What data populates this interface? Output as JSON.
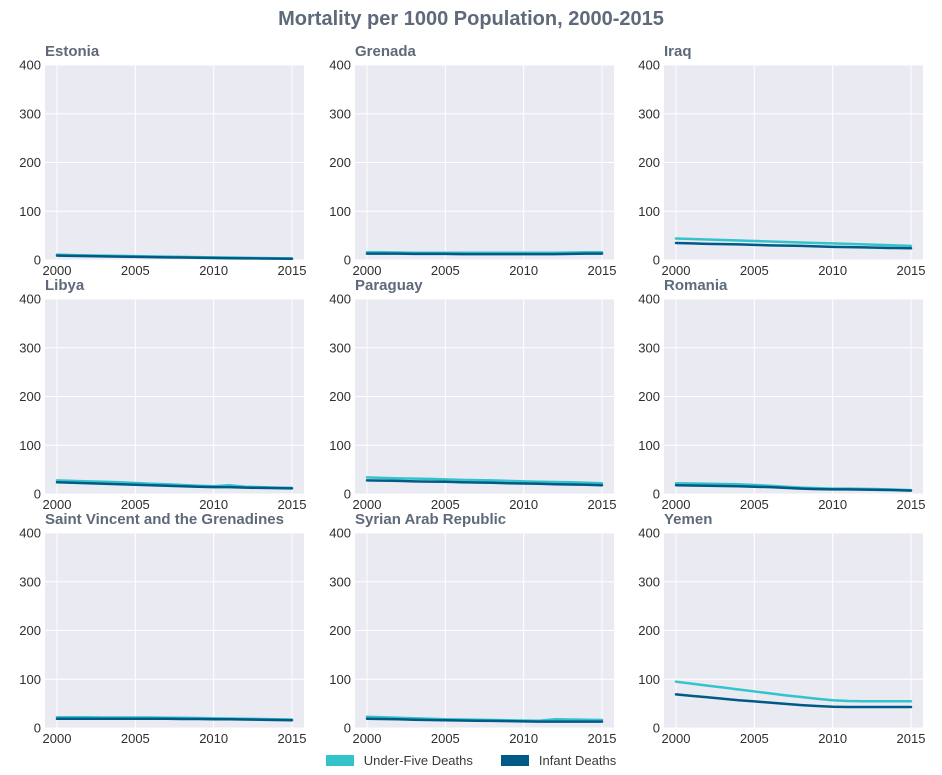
{
  "chart_data": {
    "type": "line",
    "title": "Mortality per 1000 Population, 2000-2015",
    "ylim": [
      0,
      400
    ],
    "xlim": [
      2000,
      2015
    ],
    "x_ticks": [
      2000,
      2005,
      2010,
      2015
    ],
    "y_ticks": [
      0,
      100,
      200,
      300,
      400
    ],
    "grid": true,
    "legend_position": "bottom-center",
    "series_colors": {
      "Under-Five Deaths": "#35c3cb",
      "Infant Deaths": "#005a87"
    },
    "legend": [
      {
        "name": "Under-Five Deaths",
        "color": "#35c3cb"
      },
      {
        "name": "Infant Deaths",
        "color": "#005a87"
      }
    ],
    "x": [
      2000,
      2001,
      2002,
      2003,
      2004,
      2005,
      2006,
      2007,
      2008,
      2009,
      2010,
      2011,
      2012,
      2013,
      2014,
      2015
    ],
    "panels": [
      {
        "title": "Estonia",
        "series": [
          {
            "name": "Under-Five Deaths",
            "values": [
              11,
              10,
              9.5,
              9,
              8.5,
              8,
              7.5,
              7,
              6.5,
              6,
              5.5,
              5,
              4.5,
              4,
              3.7,
              3.4
            ]
          },
          {
            "name": "Infant Deaths",
            "values": [
              9,
              8.5,
              8,
              7.5,
              7,
              6.5,
              6,
              5.5,
              5,
              4.5,
              4,
              3.7,
              3.4,
              3.1,
              2.8,
              2.5
            ]
          }
        ]
      },
      {
        "title": "Grenada",
        "series": [
          {
            "name": "Under-Five Deaths",
            "values": [
              16,
              16,
              15.5,
              15,
              15,
              15,
              15,
              15,
              15,
              15,
              15,
              15,
              15,
              15.5,
              16,
              16
            ]
          },
          {
            "name": "Infant Deaths",
            "values": [
              13,
              13,
              13,
              12.5,
              12.5,
              12.5,
              12,
              12,
              12,
              12,
              12,
              12,
              12,
              12.5,
              13,
              13
            ]
          }
        ]
      },
      {
        "title": "Iraq",
        "series": [
          {
            "name": "Under-Five Deaths",
            "values": [
              44,
              43,
              42,
              41,
              40,
              39,
              38,
              37,
              36,
              35,
              34,
              33,
              32,
              31,
              30,
              29
            ]
          },
          {
            "name": "Infant Deaths",
            "values": [
              35,
              34,
              33,
              32.5,
              32,
              31,
              30,
              29.5,
              29,
              28,
              27,
              26.5,
              26,
              25,
              24.5,
              24
            ]
          }
        ]
      },
      {
        "title": "Libya",
        "series": [
          {
            "name": "Under-Five Deaths",
            "values": [
              28,
              27,
              26,
              25,
              24,
              22.5,
              21,
              20,
              18.5,
              17,
              16,
              18,
              15,
              14,
              13,
              12.5
            ]
          },
          {
            "name": "Infant Deaths",
            "values": [
              24,
              23,
              22,
              21,
              20,
              19,
              18,
              17,
              16,
              15,
              14,
              14,
              13,
              12.5,
              12,
              11.5
            ]
          }
        ]
      },
      {
        "title": "Paraguay",
        "series": [
          {
            "name": "Under-Five Deaths",
            "values": [
              34,
              33,
              32,
              31.5,
              31,
              30,
              29,
              28.5,
              28,
              27,
              26,
              25,
              24.5,
              24,
              23,
              22
            ]
          },
          {
            "name": "Infant Deaths",
            "values": [
              28,
              27.5,
              27,
              26,
              25.5,
              25,
              24,
              23.5,
              23,
              22,
              21.5,
              21,
              20,
              19.5,
              19,
              18
            ]
          }
        ]
      },
      {
        "title": "Romania",
        "series": [
          {
            "name": "Under-Five Deaths",
            "values": [
              22,
              21.5,
              21,
              20.5,
              20,
              18.5,
              17,
              15,
              13,
              12,
              11,
              11,
              10.5,
              10,
              9,
              8
            ]
          },
          {
            "name": "Infant Deaths",
            "values": [
              18,
              17.5,
              17,
              16.5,
              16,
              15,
              14,
              12.5,
              11,
              10,
              9.5,
              9.5,
              9,
              8.5,
              8,
              7
            ]
          }
        ]
      },
      {
        "title": "Saint Vincent and the Grenadines",
        "series": [
          {
            "name": "Under-Five Deaths",
            "values": [
              22,
              22,
              22,
              21.5,
              21.5,
              21.5,
              21.5,
              21,
              21,
              20.5,
              20,
              19.5,
              19,
              18.5,
              18,
              17.5
            ]
          },
          {
            "name": "Infant Deaths",
            "values": [
              19,
              19,
              19,
              19,
              19,
              19,
              19,
              19,
              18.5,
              18.5,
              18,
              18,
              17.5,
              17,
              16.5,
              16
            ]
          }
        ]
      },
      {
        "title": "Syrian Arab Republic",
        "series": [
          {
            "name": "Under-Five Deaths",
            "values": [
              23,
              22,
              21,
              20,
              19,
              18,
              17.5,
              17,
              16.5,
              16,
              15.5,
              15,
              18,
              17.5,
              17,
              16.5
            ]
          },
          {
            "name": "Infant Deaths",
            "values": [
              19,
              18.5,
              18,
              17,
              16.5,
              16,
              15.5,
              15,
              14.5,
              14,
              13.5,
              13,
              13,
              13,
              13,
              13
            ]
          }
        ]
      },
      {
        "title": "Yemen",
        "series": [
          {
            "name": "Under-Five Deaths",
            "values": [
              95,
              91,
              87,
              83,
              79,
              75,
              71,
              67,
              63.5,
              60,
              57,
              55.5,
              55,
              55,
              55,
              55
            ]
          },
          {
            "name": "Infant Deaths",
            "values": [
              69,
              66,
              63,
              60,
              57,
              54.5,
              52,
              49.5,
              47,
              45,
              43.5,
              43,
              43,
              43,
              43,
              43
            ]
          }
        ]
      }
    ]
  }
}
